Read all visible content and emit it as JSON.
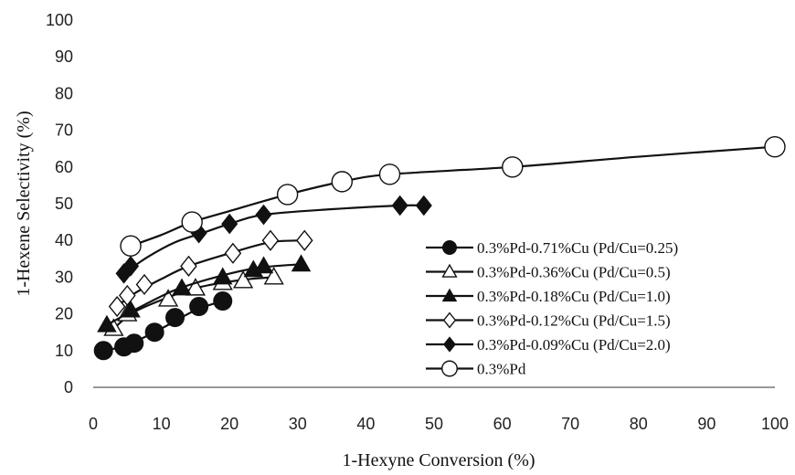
{
  "chart_data": {
    "type": "line",
    "title": "",
    "xlabel": "1-Hexyne Conversion (%)",
    "ylabel": "1-Hexene Selectivity (%)",
    "xlim": [
      0,
      100
    ],
    "ylim": [
      0,
      100
    ],
    "x_ticks": [
      "0",
      "10",
      "20",
      "30",
      "40",
      "50",
      "60",
      "70",
      "80",
      "90",
      "100"
    ],
    "y_ticks": [
      "0",
      "10",
      "20",
      "30",
      "40",
      "50",
      "60",
      "70",
      "80",
      "90",
      "100"
    ],
    "grid": false,
    "legend_position": "right",
    "series": [
      {
        "name": "0.3%Pd-0.71%Cu (Pd/Cu=0.25)",
        "marker": "circle-filled",
        "points": [
          [
            1.5,
            10
          ],
          [
            4.5,
            11
          ],
          [
            6,
            12
          ],
          [
            9,
            15
          ],
          [
            12,
            19
          ],
          [
            15.5,
            22
          ],
          [
            19,
            23.5
          ]
        ],
        "curve": [
          [
            1.5,
            10
          ],
          [
            5,
            11.5
          ],
          [
            10,
            16
          ],
          [
            15,
            21
          ],
          [
            19,
            23.5
          ]
        ]
      },
      {
        "name": "0.3%Pd-0.36%Cu (Pd/Cu=0.5)",
        "marker": "triangle-open",
        "points": [
          [
            3,
            16
          ],
          [
            5,
            20
          ],
          [
            11,
            24
          ],
          [
            15,
            27
          ],
          [
            19,
            28.5
          ],
          [
            22,
            29
          ],
          [
            26.5,
            30
          ]
        ],
        "curve": [
          [
            3,
            16
          ],
          [
            6,
            20.5
          ],
          [
            11,
            24.5
          ],
          [
            15,
            27
          ],
          [
            19,
            28.5
          ],
          [
            23,
            29.5
          ],
          [
            26.5,
            30
          ]
        ]
      },
      {
        "name": "0.3%Pd-0.18%Cu (Pd/Cu=1.0)",
        "marker": "triangle-filled",
        "points": [
          [
            2,
            17
          ],
          [
            5.5,
            21
          ],
          [
            13,
            27
          ],
          [
            19,
            30
          ],
          [
            23.5,
            32
          ],
          [
            25,
            33
          ],
          [
            30.5,
            33.5
          ]
        ],
        "curve": [
          [
            2,
            17
          ],
          [
            6,
            21
          ],
          [
            12,
            26.5
          ],
          [
            18,
            30
          ],
          [
            24,
            32.5
          ],
          [
            30.5,
            33.5
          ]
        ]
      },
      {
        "name": "0.3%Pd-0.12%Cu (Pd/Cu=1.5)",
        "marker": "diamond-open",
        "points": [
          [
            3.5,
            22
          ],
          [
            5,
            25
          ],
          [
            7.5,
            28
          ],
          [
            14,
            33
          ],
          [
            20.5,
            36.5
          ],
          [
            26,
            40
          ],
          [
            31,
            40
          ]
        ],
        "curve": [
          [
            3.5,
            22
          ],
          [
            6,
            25.5
          ],
          [
            10,
            29.5
          ],
          [
            14,
            33
          ],
          [
            20,
            36.5
          ],
          [
            26,
            39.5
          ],
          [
            31,
            40
          ]
        ]
      },
      {
        "name": "0.3%Pd-0.09%Cu (Pd/Cu=2.0)",
        "marker": "diamond-filled",
        "points": [
          [
            4.5,
            31
          ],
          [
            5.5,
            33
          ],
          [
            15.5,
            42
          ],
          [
            20,
            44.5
          ],
          [
            25,
            47
          ],
          [
            45,
            49.5
          ],
          [
            48.5,
            49.5
          ]
        ],
        "curve": [
          [
            4.5,
            31
          ],
          [
            8,
            35.5
          ],
          [
            12,
            39.5
          ],
          [
            16,
            42
          ],
          [
            20,
            44.5
          ],
          [
            25,
            47
          ],
          [
            35,
            48.5
          ],
          [
            45,
            49.5
          ],
          [
            48.5,
            49.5
          ]
        ]
      },
      {
        "name": "0.3%Pd",
        "marker": "circle-open",
        "points": [
          [
            5.5,
            38.5
          ],
          [
            14.5,
            45
          ],
          [
            28.5,
            52.5
          ],
          [
            36.5,
            56
          ],
          [
            43.5,
            58
          ],
          [
            61.5,
            60
          ],
          [
            100,
            65.5
          ]
        ],
        "curve": [
          [
            5.5,
            38.5
          ],
          [
            10,
            41.5
          ],
          [
            14.5,
            45
          ],
          [
            20,
            48
          ],
          [
            28.5,
            52.5
          ],
          [
            36.5,
            56
          ],
          [
            43.5,
            58
          ],
          [
            61.5,
            60
          ],
          [
            80,
            62.8
          ],
          [
            100,
            65.5
          ]
        ]
      }
    ]
  }
}
